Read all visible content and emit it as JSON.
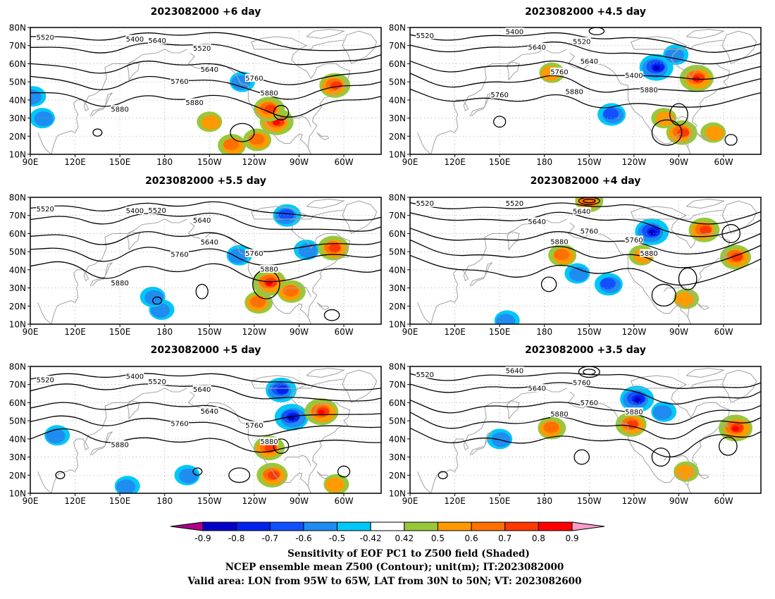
{
  "panels": [
    {
      "id": "p1",
      "title": "2023082000 +6 day",
      "contour_labels": [
        "5520",
        "5400",
        "5640",
        "5520",
        "5640",
        "5760",
        "5760",
        "5880",
        "5880",
        "5880"
      ],
      "positive_blobs": [
        {
          "lon": -118,
          "lat": 18,
          "level": 0.6
        },
        {
          "lon": -105,
          "lat": 28,
          "level": 0.8
        },
        {
          "lon": -135,
          "lat": 15,
          "level": 0.6
        },
        {
          "lon": -66,
          "lat": 48,
          "level": 0.7
        },
        {
          "lon": -150,
          "lat": 28,
          "level": 0.5
        },
        {
          "lon": -110,
          "lat": 35,
          "level": 0.7
        }
      ],
      "negative_blobs": [
        {
          "lon": 92,
          "lat": 42,
          "level": -0.5
        },
        {
          "lon": 98,
          "lat": 30,
          "level": -0.5
        },
        {
          "lon": -128,
          "lat": 50,
          "level": -0.5
        }
      ]
    },
    {
      "id": "p2",
      "title": "2023082000 +4.5 day",
      "contour_labels": [
        "5520",
        "5400",
        "5640",
        "5520",
        "5640",
        "5400",
        "5760",
        "5880",
        "5760",
        "5880"
      ],
      "positive_blobs": [
        {
          "lon": -78,
          "lat": 52,
          "level": 0.8
        },
        {
          "lon": -88,
          "lat": 22,
          "level": 0.7
        },
        {
          "lon": -100,
          "lat": 30,
          "level": 0.5
        },
        {
          "lon": -175,
          "lat": 55,
          "level": 0.5
        },
        {
          "lon": -67,
          "lat": 22,
          "level": 0.5
        }
      ],
      "negative_blobs": [
        {
          "lon": -105,
          "lat": 58,
          "level": -0.8
        },
        {
          "lon": -135,
          "lat": 32,
          "level": -0.6
        },
        {
          "lon": -92,
          "lat": 65,
          "level": -0.5
        }
      ]
    },
    {
      "id": "p3",
      "title": "2023082000 +5.5 day",
      "contour_labels": [
        "5520",
        "5400",
        "5520",
        "5640",
        "5640",
        "5760",
        "5760",
        "5880",
        "5880"
      ],
      "positive_blobs": [
        {
          "lon": -110,
          "lat": 33,
          "level": 0.8
        },
        {
          "lon": -117,
          "lat": 22,
          "level": 0.6
        },
        {
          "lon": -67,
          "lat": 52,
          "level": 0.7
        },
        {
          "lon": -95,
          "lat": 28,
          "level": 0.6
        }
      ],
      "negative_blobs": [
        {
          "lon": -98,
          "lat": 70,
          "level": -0.6
        },
        {
          "lon": -85,
          "lat": 51,
          "level": -0.5
        },
        {
          "lon": 178,
          "lat": 18,
          "level": -0.5
        },
        {
          "lon": 172,
          "lat": 25,
          "level": -0.5
        },
        {
          "lon": -130,
          "lat": 48,
          "level": -0.5
        }
      ]
    },
    {
      "id": "p4",
      "title": "2023082000 +4 day",
      "contour_labels": [
        "5520",
        "5520",
        "5640",
        "5640",
        "5760",
        "5760",
        "5880",
        "5880"
      ],
      "positive_blobs": [
        {
          "lon": -73,
          "lat": 62,
          "level": 0.7
        },
        {
          "lon": -52,
          "lat": 47,
          "level": 0.7
        },
        {
          "lon": -85,
          "lat": 24,
          "level": 0.5
        },
        {
          "lon": -168,
          "lat": 48,
          "level": 0.6
        },
        {
          "lon": -150,
          "lat": 78,
          "level": 0.6
        },
        {
          "lon": -115,
          "lat": 48,
          "level": 0.5
        }
      ],
      "negative_blobs": [
        {
          "lon": -108,
          "lat": 61,
          "level": -0.8
        },
        {
          "lon": -137,
          "lat": 32,
          "level": -0.6
        },
        {
          "lon": 155,
          "lat": 12,
          "level": -0.5
        },
        {
          "lon": -158,
          "lat": 38,
          "level": -0.5
        }
      ]
    },
    {
      "id": "p5",
      "title": "2023082000 +5 day",
      "contour_labels": [
        "5520",
        "5400",
        "5520",
        "5640",
        "5640",
        "5760",
        "5760",
        "5880",
        "5880"
      ],
      "positive_blobs": [
        {
          "lon": -75,
          "lat": 55,
          "level": 0.8
        },
        {
          "lon": -110,
          "lat": 35,
          "level": 0.7
        },
        {
          "lon": -108,
          "lat": 20,
          "level": 0.7
        },
        {
          "lon": -65,
          "lat": 15,
          "level": 0.5
        }
      ],
      "negative_blobs": [
        {
          "lon": -102,
          "lat": 67,
          "level": -0.7
        },
        {
          "lon": -95,
          "lat": 52,
          "level": -0.8
        },
        {
          "lon": 155,
          "lat": 14,
          "level": -0.5
        },
        {
          "lon": -165,
          "lat": 20,
          "level": -0.5
        },
        {
          "lon": 108,
          "lat": 42,
          "level": -0.5
        }
      ]
    },
    {
      "id": "p6",
      "title": "2023082000 +3.5 day",
      "contour_labels": [
        "5520",
        "5640",
        "5640",
        "5760",
        "5760",
        "5880",
        "5880"
      ],
      "positive_blobs": [
        {
          "lon": -52,
          "lat": 46,
          "level": 0.8
        },
        {
          "lon": -175,
          "lat": 46,
          "level": 0.6
        },
        {
          "lon": -122,
          "lat": 48,
          "level": 0.7
        },
        {
          "lon": -85,
          "lat": 22,
          "level": 0.5
        }
      ],
      "negative_blobs": [
        {
          "lon": -118,
          "lat": 62,
          "level": -0.8
        },
        {
          "lon": 150,
          "lat": 40,
          "level": -0.5
        },
        {
          "lon": -100,
          "lat": 55,
          "level": -0.5
        }
      ]
    }
  ],
  "axes": {
    "lat_labels": [
      "10N",
      "20N",
      "30N",
      "40N",
      "50N",
      "60N",
      "70N",
      "80N"
    ],
    "lon_labels": [
      "90E",
      "120E",
      "150E",
      "180",
      "150W",
      "120W",
      "90W",
      "60W"
    ],
    "lon_range": [
      90,
      -35
    ],
    "lat_range": [
      10,
      80
    ]
  },
  "colorbar": {
    "tick_labels": [
      "-0.9",
      "-0.8",
      "-0.7",
      "-0.6",
      "-0.5",
      "-0.42",
      "0.42",
      "0.5",
      "0.6",
      "0.7",
      "0.8",
      "0.9"
    ],
    "colors": [
      "#b0008a",
      "#0000c8",
      "#0022ee",
      "#1250ff",
      "#1e8cf0",
      "#00c8f8",
      "#ffffff",
      "#98c83a",
      "#ff9a00",
      "#ff7000",
      "#ff3800",
      "#ff0000",
      "#ff9ccc"
    ]
  },
  "footer": {
    "line1": "Sensitivity of EOF PC1 to Z500 field (Shaded)",
    "line2": "NCEP ensemble mean Z500 (Contour); unit(m); IT:2023082000",
    "line3": "Valid area: LON from 95W to 65W, LAT from 30N to 50N; VT: 2023082600"
  }
}
